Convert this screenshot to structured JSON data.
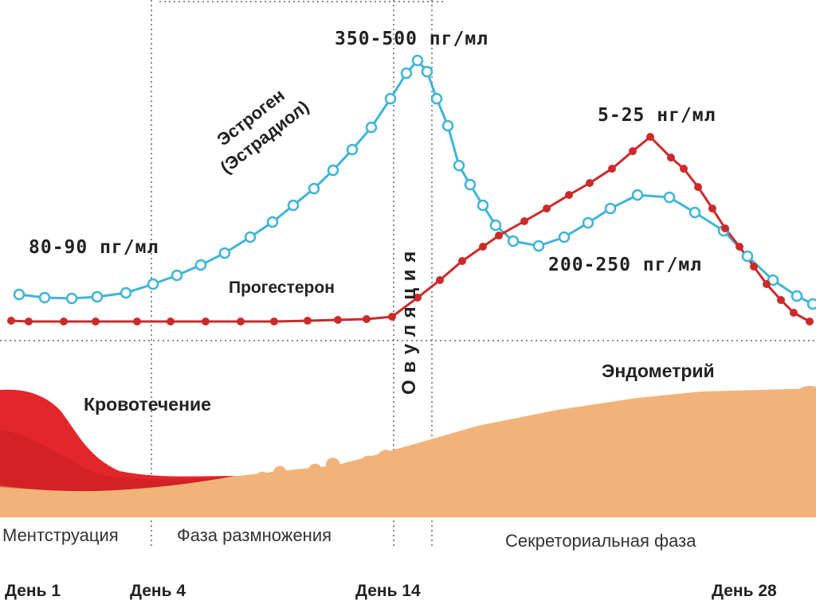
{
  "labels": {
    "estrogen_peak": "350-500 пг/мл",
    "estrogen_start": "80-90 пг/мл",
    "estrogen_line1": "Эстроген",
    "estrogen_line2": "(Эстрадиол)",
    "progesterone": "Прогестерон",
    "progesterone_peak": "5-25 нг/мл",
    "estrogen_second": "200-250 пг/мл",
    "ovulation": "О в у л я ц и я",
    "endometrium": "Эндометрий",
    "bleeding": "Кровотечение"
  },
  "phases": {
    "menstruation": "Ментструация",
    "proliferation": "Фаза размножения",
    "secretory": "Секреториальная фаза"
  },
  "days": {
    "d1": "День 1",
    "d4": "День 4",
    "d14": "День 14",
    "d28": "День 28"
  },
  "colors": {
    "estrogen": "#3fb4d8",
    "progesterone": "#cc2a2a",
    "endometrium": "#f2b37a",
    "blood": "#e3262a"
  }
}
